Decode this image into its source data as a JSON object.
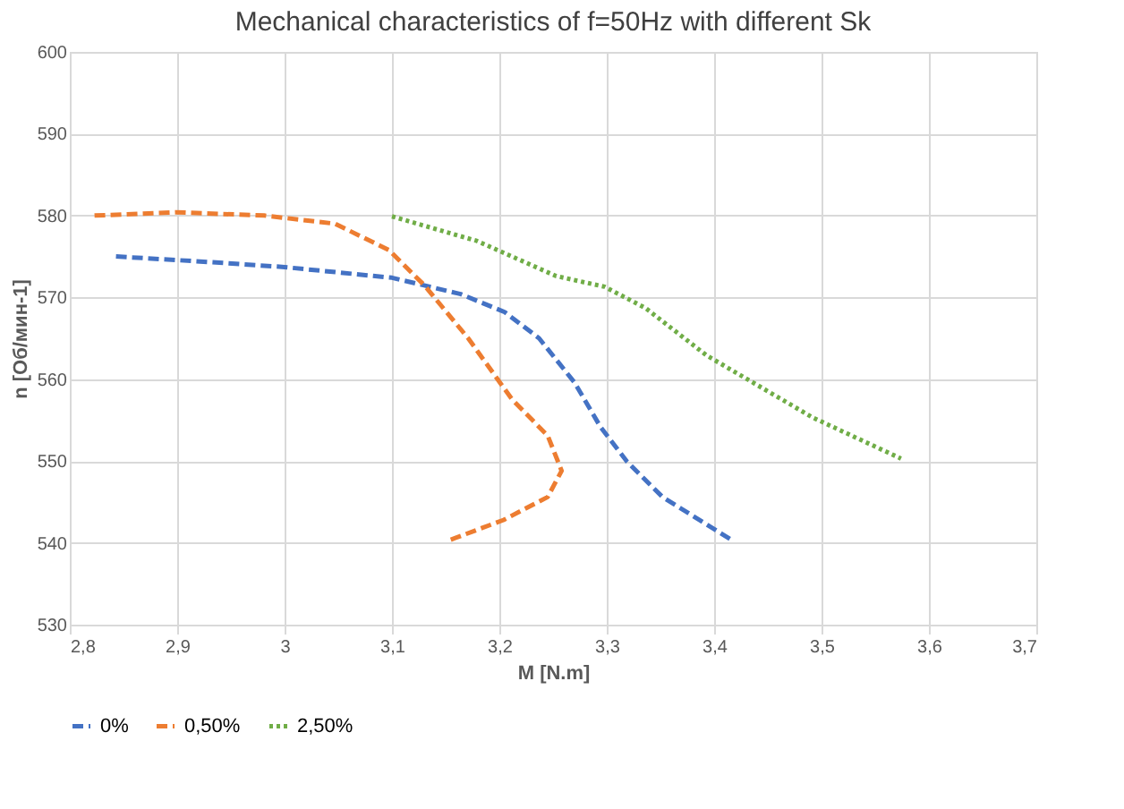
{
  "chart_data": {
    "type": "line",
    "title": "Mechanical characteristics of f=50Hz with different Sk",
    "xlabel": "M [N.m]",
    "ylabel": "n [Об/мин-1]",
    "xlim": [
      2.8,
      3.7
    ],
    "xticks": [
      {
        "value": 2.8,
        "label": "2,8"
      },
      {
        "value": 2.9,
        "label": "2,9"
      },
      3,
      {
        "value": 3.1,
        "label": "3,1"
      },
      {
        "value": 3.2,
        "label": "3,2"
      },
      {
        "value": 3.3,
        "label": "3,3"
      },
      {
        "value": 3.4,
        "label": "3,4"
      },
      {
        "value": 3.5,
        "label": "3,5"
      },
      {
        "value": 3.6,
        "label": "3,6"
      },
      {
        "value": 3.7,
        "label": "3,7"
      }
    ],
    "ylim": [
      530,
      600
    ],
    "yticks": [
      530,
      540,
      550,
      560,
      570,
      580,
      590,
      600
    ],
    "grid": true,
    "legend": "bottom",
    "marker": "none",
    "series": [
      {
        "name": "0%",
        "color": "#4472c4",
        "line_style": "dashed",
        "x": [
          2.843,
          2.932,
          3.0,
          3.1,
          3.164,
          3.205,
          3.237,
          3.27,
          3.294,
          3.319,
          3.352,
          3.418
        ],
        "values": [
          575.0,
          574.3,
          573.7,
          572.4,
          570.4,
          568.2,
          565.0,
          559.6,
          554.2,
          549.9,
          545.6,
          540.2
        ]
      },
      {
        "name": "0,50%",
        "color": "#ed7d31",
        "line_style": "dashed",
        "x": [
          2.823,
          2.899,
          2.981,
          3.047,
          3.097,
          3.13,
          3.171,
          3.212,
          3.245,
          3.258,
          3.245,
          3.204,
          3.151
        ],
        "values": [
          580.0,
          580.4,
          580.0,
          579.0,
          575.8,
          571.5,
          565.0,
          557.5,
          553.1,
          548.8,
          545.6,
          542.8,
          540.2
        ]
      },
      {
        "name": "2,50%",
        "color": "#70ad47",
        "line_style": "dotted",
        "x": [
          3.1,
          3.179,
          3.253,
          3.298,
          3.336,
          3.393,
          3.492,
          3.574
        ],
        "values": [
          579.9,
          576.9,
          572.6,
          571.3,
          568.7,
          562.9,
          555.3,
          550.3
        ]
      }
    ]
  }
}
